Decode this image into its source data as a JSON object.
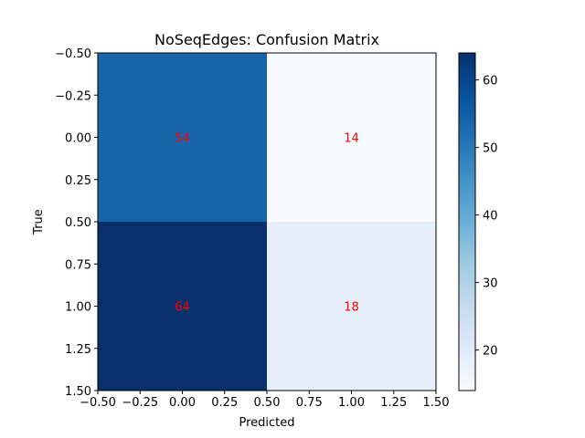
{
  "chart_data": {
    "type": "heatmap",
    "title": "NoSeqEdges: Confusion Matrix",
    "xlabel": "Predicted",
    "ylabel": "True",
    "xlim": [
      -0.5,
      1.5
    ],
    "ylim": [
      1.5,
      -0.5
    ],
    "x_ticks": [
      -0.5,
      -0.25,
      0.0,
      0.25,
      0.5,
      0.75,
      1.0,
      1.25,
      1.5
    ],
    "x_tick_labels": [
      "−0.50",
      "−0.25",
      "0.00",
      "0.25",
      "0.50",
      "0.75",
      "1.00",
      "1.25",
      "1.50"
    ],
    "y_ticks": [
      -0.5,
      -0.25,
      0.0,
      0.25,
      0.5,
      0.75,
      1.0,
      1.25,
      1.5
    ],
    "y_tick_labels": [
      "−0.50",
      "−0.25",
      "0.00",
      "0.25",
      "0.50",
      "0.75",
      "1.00",
      "1.25",
      "1.50"
    ],
    "rows": [
      0,
      1
    ],
    "cols": [
      0,
      1
    ],
    "matrix": [
      [
        54,
        14
      ],
      [
        64,
        18
      ]
    ],
    "cell_labels": [
      [
        "54",
        "14"
      ],
      [
        "64",
        "18"
      ]
    ],
    "cell_label_color": "#ff0000",
    "colormap": "Blues",
    "colorbar": {
      "min": 14,
      "max": 64,
      "ticks": [
        20,
        30,
        40,
        50,
        60
      ],
      "tick_labels": [
        "20",
        "30",
        "40",
        "50",
        "60"
      ]
    },
    "colors": {
      "cell_54": "#1764ab",
      "cell_14": "#f7fbff",
      "cell_64": "#08306b",
      "cell_18": "#e6eff9"
    }
  }
}
